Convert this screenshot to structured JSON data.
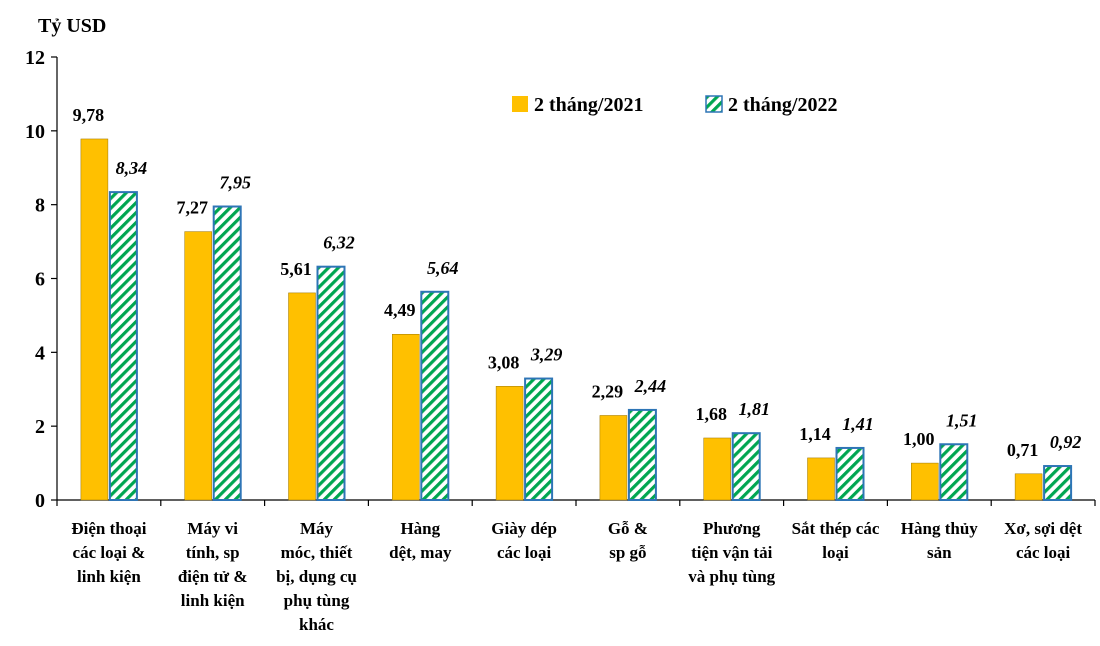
{
  "chart_data": {
    "type": "bar",
    "ylabel": "Tỷ USD",
    "ylim": [
      0,
      12
    ],
    "yticks": [
      0,
      2,
      4,
      6,
      8,
      10,
      12
    ],
    "legend_position": "top-right",
    "categories": [
      [
        "Điện thoại",
        "các loại &",
        "linh kiện"
      ],
      [
        "Máy vi",
        "tính, sp",
        "điện tử &",
        "linh kiện"
      ],
      [
        "Máy",
        "móc, thiết",
        "bị, dụng cụ",
        "phụ tùng",
        "khác"
      ],
      [
        "Hàng",
        "dệt, may"
      ],
      [
        "Giày dép",
        "các loại"
      ],
      [
        "Gỗ &",
        "sp gỗ"
      ],
      [
        "Phương",
        "tiện vận tải",
        "và phụ tùng"
      ],
      [
        "Sắt thép  các",
        "loại"
      ],
      [
        "Hàng thủy",
        "sản"
      ],
      [
        "Xơ, sợi dệt",
        "các loại"
      ]
    ],
    "series": [
      {
        "name": "2 tháng/2021",
        "color": "#FFC000",
        "pattern": "solid",
        "values": [
          9.78,
          7.27,
          5.61,
          4.49,
          3.08,
          2.29,
          1.68,
          1.14,
          1.0,
          0.71
        ],
        "labels": [
          "9,78",
          "7,27",
          "5,61",
          "4,49",
          "3,08",
          "2,29",
          "1,68",
          "1,14",
          "1,00",
          "0,71"
        ]
      },
      {
        "name": "2 tháng/2022",
        "color": "#00A651",
        "border_color": "#2E75B6",
        "pattern": "diagonal-stripes",
        "values": [
          8.34,
          7.95,
          6.32,
          5.64,
          3.29,
          2.44,
          1.81,
          1.41,
          1.51,
          0.92
        ],
        "labels": [
          "8,34",
          "7,95",
          "6,32",
          "5,64",
          "3,29",
          "2,44",
          "1,81",
          "1,41",
          "1,51",
          "0,92"
        ]
      }
    ]
  }
}
